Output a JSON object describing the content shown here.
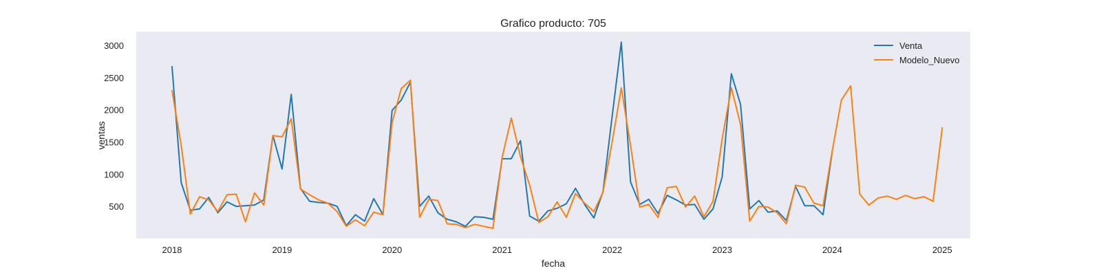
{
  "chart_data": {
    "type": "line",
    "title": "Grafico producto: 705",
    "xlabel": "fecha",
    "ylabel": "ventas",
    "x_start_month": "2018-01",
    "x_ticks": [
      "2018",
      "2019",
      "2020",
      "2021",
      "2022",
      "2023",
      "2024",
      "2025"
    ],
    "y_ticks": [
      500,
      1000,
      1500,
      2000,
      2500,
      3000
    ],
    "ylim": [
      0,
      3250
    ],
    "xlim": [
      "2017-07",
      "2025-02"
    ],
    "grid": false,
    "legend_position": "top-right",
    "series": [
      {
        "name": "Venta",
        "color": "#1f77b4",
        "values": [
          2670,
          870,
          440,
          460,
          640,
          400,
          570,
          500,
          510,
          520,
          600,
          1600,
          1080,
          2240,
          780,
          580,
          560,
          550,
          500,
          200,
          370,
          270,
          620,
          370,
          1990,
          2150,
          2430,
          500,
          660,
          400,
          300,
          260,
          190,
          340,
          330,
          300,
          1240,
          1240,
          1520,
          350,
          270,
          430,
          470,
          540,
          780,
          530,
          320,
          730,
          1900,
          3050,
          880,
          530,
          610,
          390,
          670,
          600,
          520,
          530,
          300,
          460,
          960,
          2560,
          2080,
          460,
          590,
          410,
          430,
          280,
          810,
          510,
          510,
          370,
          1350
        ]
      },
      {
        "name": "Modelo_Nuevo",
        "color": "#ff7f0e",
        "values": [
          2300,
          1450,
          380,
          650,
          600,
          420,
          680,
          690,
          260,
          710,
          520,
          1600,
          1580,
          1860,
          770,
          680,
          600,
          550,
          420,
          190,
          290,
          200,
          410,
          370,
          1800,
          2330,
          2460,
          330,
          610,
          590,
          230,
          220,
          170,
          220,
          190,
          160,
          1260,
          1870,
          1270,
          830,
          250,
          340,
          570,
          330,
          700,
          550,
          420,
          720,
          1500,
          2340,
          1450,
          490,
          530,
          330,
          790,
          810,
          490,
          660,
          340,
          580,
          1550,
          2340,
          1770,
          270,
          500,
          490,
          400,
          230,
          830,
          800,
          550,
          510,
          1360,
          2150,
          2370,
          690,
          520,
          630,
          660,
          610,
          670,
          620,
          650,
          580,
          1720
        ]
      }
    ]
  }
}
